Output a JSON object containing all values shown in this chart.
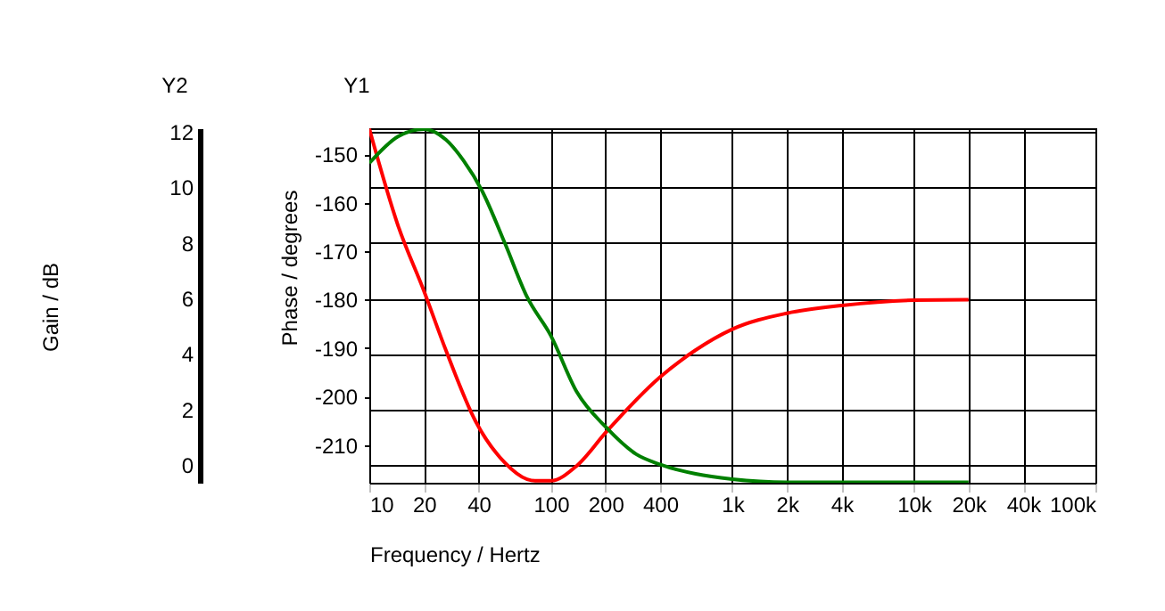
{
  "chart_data": {
    "type": "line",
    "xlabel": "Frequency / Hertz",
    "ylabel": "Phase / degrees",
    "y2label": "Gain / dB",
    "annotations": [
      "Y2",
      "Y1"
    ],
    "log": "x",
    "grid": true,
    "series": [
      {
        "color": "#ff0000",
        "x": [
          10,
          14.4,
          20,
          26.4,
          38.5,
          55.9,
          74,
          82,
          100,
          139,
          202,
          399,
          628,
          1000,
          2000,
          4000,
          10000,
          20000
        ],
        "values": [
          -144.7,
          -164.7,
          -178.2,
          -190.4,
          -205.1,
          -213.7,
          -217.1,
          -217.4,
          -217.4,
          -214.3,
          -207.3,
          -196.0,
          -190.4,
          -186.1,
          -182.8,
          -181.2,
          -180.1,
          -180.0
        ]
      },
      {
        "color": "#008000",
        "axis": "y2",
        "x": [
          10,
          14.4,
          20,
          26.4,
          33,
          41.6,
          55.9,
          74,
          100,
          139,
          202,
          295,
          399,
          628,
          1000,
          2000,
          4000,
          10000,
          20000
        ],
        "values": [
          10.87,
          11.83,
          12.1,
          11.72,
          10.97,
          9.9,
          7.98,
          6.05,
          4.66,
          2.63,
          1.35,
          0.39,
          0.02,
          -0.32,
          -0.51,
          -0.62,
          -0.62,
          -0.62,
          -0.62
        ]
      }
    ],
    "xlim": [
      10,
      100000
    ],
    "xticks": [
      10,
      20,
      40,
      100,
      200,
      400,
      {
        "value": 1000,
        "label": "1k"
      },
      {
        "value": 2000,
        "label": "2k"
      },
      {
        "value": 4000,
        "label": "4k"
      },
      {
        "value": 10000,
        "label": "10k"
      },
      {
        "value": 20000,
        "label": "20k"
      },
      {
        "value": 40000,
        "label": "40k"
      },
      {
        "value": 100000,
        "label": "100k"
      }
    ],
    "ylim": [
      -217.8,
      -144.6
    ],
    "yticks": [
      -150,
      -160,
      -170,
      -180,
      -190,
      -200,
      -210
    ],
    "y2lim": [
      -0.64,
      12.13
    ],
    "y2ticks": [
      0,
      2,
      4,
      6,
      8,
      10,
      12
    ]
  }
}
